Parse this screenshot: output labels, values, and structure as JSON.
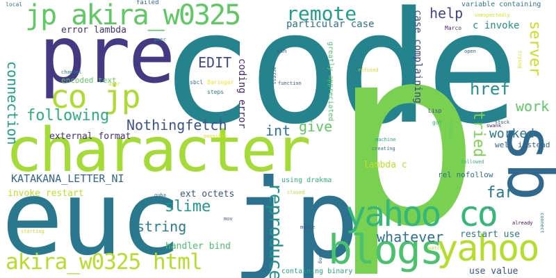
{
  "cloud": {
    "words": [
      {
        "text": "code",
        "color": "#25838e"
      },
      {
        "text": "p",
        "color": "#7ad151"
      },
      {
        "text": "euc",
        "color": "#2a788e"
      },
      {
        "text": "jp",
        "color": "#2c718e"
      },
      {
        "text": "character",
        "color": "#a5db36"
      },
      {
        "text": "pre",
        "color": "#443983"
      },
      {
        "text": "sb",
        "color": "#31688e"
      },
      {
        "text": "blogs",
        "color": "#4ac16d"
      },
      {
        "text": "yahoo",
        "color": "#b5de2b"
      },
      {
        "text": "yahoo co",
        "color": "#35b779"
      },
      {
        "text": "jp akira_w0325",
        "color": "#5ec962"
      },
      {
        "text": "co jp",
        "color": "#addc30"
      },
      {
        "text": "akira_w0325 html",
        "color": "#b5de2b"
      },
      {
        "text": "reproduce",
        "color": "#21918c"
      },
      {
        "text": "remote",
        "color": "#1f9e89"
      },
      {
        "text": "help",
        "color": "#414487"
      },
      {
        "text": "server",
        "color": "#c8e020"
      },
      {
        "text": "href",
        "color": "#21918c"
      },
      {
        "text": "work",
        "color": "#5ec962"
      },
      {
        "text": "tried",
        "color": "#7ad151"
      },
      {
        "text": "worked",
        "color": "#2a788e"
      },
      {
        "text": "connection",
        "color": "#1f9e89"
      },
      {
        "text": "following",
        "color": "#29af7f"
      },
      {
        "text": "Nothingfetch",
        "color": "#3b528b"
      },
      {
        "text": "int",
        "color": "#2c728e"
      },
      {
        "text": "give",
        "color": "#5ec962"
      },
      {
        "text": "EDIT",
        "color": "#3e4989"
      },
      {
        "text": "slime",
        "color": "#1f988b"
      },
      {
        "text": "string",
        "color": "#287d8e"
      },
      {
        "text": "whatever",
        "color": "#2c728e"
      },
      {
        "text": "far",
        "color": "#2a788e"
      },
      {
        "text": "KATAKANA_LETTER_NI",
        "color": "#32658e"
      },
      {
        "text": "particular case",
        "color": "#2c728e"
      },
      {
        "text": "c invoke",
        "color": "#21918c"
      },
      {
        "text": "error lambda",
        "color": "#46337e"
      },
      {
        "text": "coding error",
        "color": "#482475"
      },
      {
        "text": "case complaining",
        "color": "#3f4788"
      },
      {
        "text": "external format",
        "color": "#472f7d"
      },
      {
        "text": "encoded text",
        "color": "#5ec962"
      },
      {
        "text": "lambda c",
        "color": "#bddf26"
      },
      {
        "text": "ext octets",
        "color": "#3b528b"
      },
      {
        "text": "invoke restart",
        "color": "#bddf26"
      },
      {
        "text": "handler bind",
        "color": "#4ac16d"
      },
      {
        "text": "restart use",
        "color": "#2a788e"
      },
      {
        "text": "use value",
        "color": "#3b528b"
      },
      {
        "text": "well instead",
        "color": "#33638d"
      },
      {
        "text": "rel nofollow",
        "color": "#2e6e8e"
      },
      {
        "text": "using drakma",
        "color": "#2db27d"
      },
      {
        "text": "containing binary",
        "color": "#22a785"
      },
      {
        "text": "variable containing",
        "color": "#2a788e"
      },
      {
        "text": "greatly appreciated",
        "color": "#52c569"
      },
      {
        "text": "failed",
        "color": "#31688e"
      },
      {
        "text": "local",
        "color": "#2c728e"
      },
      {
        "text": "Marco",
        "color": "#472c7a"
      },
      {
        "text": "unexpectedly",
        "color": "#d8e219"
      },
      {
        "text": "open",
        "color": "#38588c"
      },
      {
        "text": "trying",
        "color": "#d8e219"
      },
      {
        "text": "peer",
        "color": "#21918c"
      },
      {
        "text": "ssh",
        "color": "#39568c"
      },
      {
        "text": "access",
        "color": "#31688e"
      },
      {
        "text": "function",
        "color": "#3b528b"
      },
      {
        "text": "sbcl",
        "color": "#2c718e"
      },
      {
        "text": "Baringer",
        "color": "#f1e51d"
      },
      {
        "text": "steps",
        "color": "#2a788e"
      },
      {
        "text": "user",
        "color": "#d0e11c"
      },
      {
        "text": "channel",
        "color": "#26828e"
      },
      {
        "text": "refused",
        "color": "#d8e219"
      },
      {
        "text": "Lisp",
        "color": "#414487"
      },
      {
        "text": "stuck",
        "color": "#39568c"
      },
      {
        "text": "swank",
        "color": "#481f70"
      },
      {
        "text": "got",
        "color": "#2db27d"
      },
      {
        "text": "broken",
        "color": "#5ec962"
      },
      {
        "text": "machine",
        "color": "#22a785"
      },
      {
        "text": "creating",
        "color": "#2e6e8e"
      },
      {
        "text": "possibly",
        "color": "#dde318"
      },
      {
        "text": "followed",
        "color": "#35b779"
      },
      {
        "text": "guba",
        "color": "#33638d"
      },
      {
        "text": "closed",
        "color": "#b5de2b"
      },
      {
        "text": "mov",
        "color": "#3b528b"
      },
      {
        "text": "starting",
        "color": "#cae11f"
      },
      {
        "text": "movie",
        "color": "#3b528b"
      },
      {
        "text": "wrong",
        "color": "#33638d"
      },
      {
        "text": "watch",
        "color": "#b5de2b"
      },
      {
        "text": "already",
        "color": "#440154"
      },
      {
        "text": "connect",
        "color": "#25838e"
      },
      {
        "text": "L",
        "color": "#3b528b"
      }
    ]
  }
}
